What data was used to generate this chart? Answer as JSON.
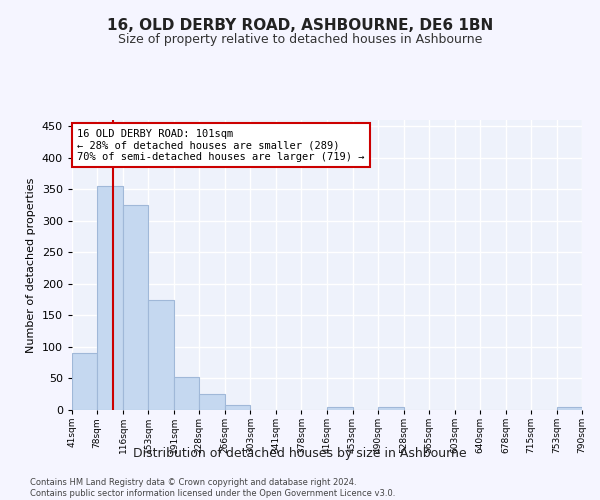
{
  "title": "16, OLD DERBY ROAD, ASHBOURNE, DE6 1BN",
  "subtitle": "Size of property relative to detached houses in Ashbourne",
  "xlabel": "Distribution of detached houses by size in Ashbourne",
  "ylabel": "Number of detached properties",
  "footer_line1": "Contains HM Land Registry data © Crown copyright and database right 2024.",
  "footer_line2": "Contains public sector information licensed under the Open Government Licence v3.0.",
  "bar_edges": [
    41,
    78,
    116,
    153,
    191,
    228,
    266,
    303,
    341,
    378,
    416,
    453,
    490,
    528,
    565,
    603,
    640,
    678,
    715,
    753,
    790
  ],
  "bar_heights": [
    91,
    356,
    325,
    175,
    53,
    25,
    8,
    0,
    0,
    0,
    5,
    0,
    5,
    0,
    0,
    0,
    0,
    0,
    0,
    5
  ],
  "bar_color": "#c5d8f0",
  "bar_edge_color": "#a0b8d8",
  "property_line_x": 101,
  "property_line_color": "#cc0000",
  "annotation_line1": "16 OLD DERBY ROAD: 101sqm",
  "annotation_line2": "← 28% of detached houses are smaller (289)",
  "annotation_line3": "70% of semi-detached houses are larger (719) →",
  "annotation_box_color": "#cc0000",
  "ylim": [
    0,
    460
  ],
  "yticks": [
    0,
    50,
    100,
    150,
    200,
    250,
    300,
    350,
    400,
    450
  ],
  "background_color": "#eef2fb",
  "fig_background_color": "#f5f5ff",
  "grid_color": "#ffffff",
  "tick_labels": [
    "41sqm",
    "78sqm",
    "116sqm",
    "153sqm",
    "191sqm",
    "228sqm",
    "266sqm",
    "303sqm",
    "341sqm",
    "378sqm",
    "416sqm",
    "453sqm",
    "490sqm",
    "528sqm",
    "565sqm",
    "603sqm",
    "640sqm",
    "678sqm",
    "715sqm",
    "753sqm",
    "790sqm"
  ]
}
